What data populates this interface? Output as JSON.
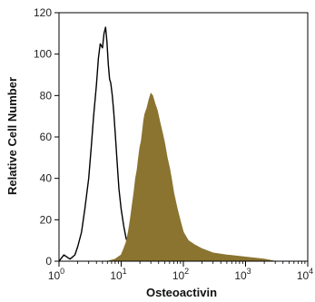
{
  "chart_data": {
    "type": "area",
    "title": "",
    "xlabel": "Osteoactivin",
    "ylabel": "Relative Cell Number",
    "xscale": "log",
    "xlim": [
      1,
      10000
    ],
    "ylim": [
      0,
      120
    ],
    "x_ticks": [
      {
        "value": 1,
        "base": "10",
        "exp": "0"
      },
      {
        "value": 10,
        "base": "10",
        "exp": "1"
      },
      {
        "value": 100,
        "base": "10",
        "exp": "2"
      },
      {
        "value": 1000,
        "base": "10",
        "exp": "3"
      },
      {
        "value": 10000,
        "base": "10",
        "exp": "4"
      }
    ],
    "y_ticks": [
      0,
      20,
      40,
      60,
      80,
      100,
      120
    ],
    "grid": false,
    "series": [
      {
        "style": "line",
        "color": "#000000",
        "x": [
          1,
          1.2,
          1.5,
          1.8,
          2.0,
          2.3,
          2.6,
          3.0,
          3.3,
          3.6,
          4.0,
          4.3,
          4.6,
          5.0,
          5.3,
          5.6,
          5.9,
          6.2,
          6.5,
          6.8,
          7.2,
          7.6,
          8.0,
          8.6,
          9.2,
          10,
          11,
          12,
          13,
          14,
          15,
          17,
          19,
          21,
          24,
          28
        ],
        "y": [
          0,
          3,
          1,
          3,
          7,
          14,
          25,
          40,
          55,
          70,
          85,
          98,
          105,
          103,
          110,
          113,
          106,
          95,
          88,
          86,
          80,
          72,
          62,
          48,
          35,
          25,
          17,
          11,
          8,
          6,
          4,
          3,
          2,
          1,
          0.5,
          0
        ]
      },
      {
        "style": "filled",
        "color": "#8a7430",
        "x": [
          6,
          8,
          10,
          11,
          12,
          13,
          14,
          15,
          16,
          17,
          18,
          19,
          20,
          21,
          22,
          23,
          24,
          26,
          28,
          30,
          32,
          35,
          38,
          42,
          46,
          50,
          55,
          60,
          65,
          70,
          80,
          90,
          100,
          120,
          150,
          200,
          300,
          500,
          1000,
          2000,
          3000
        ],
        "y": [
          0,
          1,
          3,
          6,
          9,
          14,
          20,
          27,
          33,
          40,
          44,
          50,
          55,
          58,
          63,
          68,
          71,
          74,
          78,
          81,
          80,
          76,
          73,
          67,
          62,
          57,
          50,
          45,
          39,
          33,
          25,
          19,
          14,
          10,
          8,
          6,
          4,
          3,
          2,
          1,
          0
        ]
      }
    ]
  }
}
